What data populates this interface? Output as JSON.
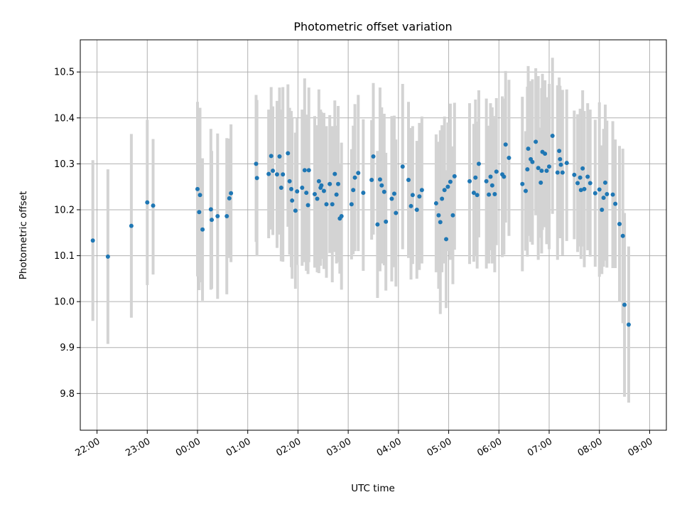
{
  "chart_data": {
    "type": "scatter",
    "title": "Photometric offset variation",
    "xlabel": "UTC time",
    "ylabel": "Photometric offset",
    "grid": true,
    "x_is_time": true,
    "x_ticks": [
      "22:00",
      "23:00",
      "00:00",
      "01:00",
      "02:00",
      "03:00",
      "04:00",
      "05:00",
      "06:00",
      "07:00",
      "08:00",
      "09:00"
    ],
    "y_ticks": [
      "9.8",
      "9.9",
      "10.0",
      "10.1",
      "10.2",
      "10.3",
      "10.4",
      "10.5"
    ],
    "xlim": [
      "21:40",
      "09:20"
    ],
    "ylim": [
      9.72,
      10.57
    ],
    "colors": {
      "points": "#1f77b4",
      "errorbars": "#d3d3d3",
      "grid": "#b0b0b0"
    },
    "series": [
      {
        "x": [
          "21:55",
          "22:13",
          "22:41",
          "23:00",
          "23:07",
          "00:00",
          "00:02",
          "00:03",
          "00:06",
          "00:16",
          "00:17",
          "00:24",
          "00:35",
          "00:38",
          "00:40",
          "01:10",
          "01:11",
          "01:25",
          "01:28",
          "01:30",
          "01:35",
          "01:38",
          "01:40",
          "01:42",
          "01:48",
          "01:50",
          "01:52",
          "01:53",
          "01:57",
          "01:59",
          "02:05",
          "02:08",
          "02:10",
          "02:12",
          "02:13",
          "02:20",
          "02:23",
          "02:25",
          "02:27",
          "02:28",
          "02:31",
          "02:34",
          "02:38",
          "02:41",
          "02:44",
          "02:46",
          "02:48",
          "02:50",
          "02:52",
          "03:04",
          "03:06",
          "03:08",
          "03:12",
          "03:18",
          "03:28",
          "03:30",
          "03:35",
          "03:38",
          "03:40",
          "03:43",
          "03:45",
          "03:52",
          "03:55",
          "03:57",
          "04:05",
          "04:12",
          "04:15",
          "04:17",
          "04:22",
          "04:25",
          "04:28",
          "04:45",
          "04:48",
          "04:50",
          "04:52",
          "04:55",
          "04:57",
          "04:59",
          "05:02",
          "05:05",
          "05:07",
          "05:25",
          "05:30",
          "05:32",
          "05:34",
          "05:36",
          "05:45",
          "05:48",
          "05:50",
          "05:52",
          "05:55",
          "05:57",
          "06:04",
          "06:06",
          "06:08",
          "06:12",
          "06:28",
          "06:32",
          "06:34",
          "06:35",
          "06:38",
          "06:40",
          "06:44",
          "06:47",
          "06:50",
          "06:51",
          "06:52",
          "06:55",
          "06:57",
          "07:00",
          "07:04",
          "07:10",
          "07:12",
          "07:13",
          "07:14",
          "07:16",
          "07:21",
          "07:30",
          "07:34",
          "07:37",
          "07:38",
          "07:40",
          "07:42",
          "07:46",
          "07:49",
          "07:55",
          "08:00",
          "08:03",
          "08:05",
          "08:07",
          "08:09",
          "08:16",
          "08:19",
          "08:24",
          "08:28",
          "08:30",
          "08:35"
        ],
        "y": [
          10.133,
          10.098,
          10.165,
          10.216,
          10.209,
          10.245,
          10.195,
          10.232,
          10.157,
          10.201,
          10.178,
          10.186,
          10.186,
          10.225,
          10.236,
          10.3,
          10.269,
          10.278,
          10.317,
          10.285,
          10.277,
          10.316,
          10.248,
          10.277,
          10.323,
          10.262,
          10.245,
          10.22,
          10.198,
          10.24,
          10.248,
          10.286,
          10.237,
          10.21,
          10.286,
          10.234,
          10.224,
          10.262,
          10.248,
          10.253,
          10.241,
          10.212,
          10.256,
          10.212,
          10.278,
          10.233,
          10.256,
          10.181,
          10.186,
          10.212,
          10.243,
          10.27,
          10.28,
          10.237,
          10.265,
          10.316,
          10.168,
          10.266,
          10.253,
          10.239,
          10.174,
          10.224,
          10.235,
          10.193,
          10.294,
          10.265,
          10.208,
          10.232,
          10.2,
          10.229,
          10.243,
          10.214,
          10.188,
          10.173,
          10.224,
          10.243,
          10.136,
          10.25,
          10.261,
          10.188,
          10.273,
          10.262,
          10.237,
          10.27,
          10.232,
          10.3,
          10.262,
          10.233,
          10.272,
          10.253,
          10.234,
          10.283,
          10.277,
          10.272,
          10.342,
          10.313,
          10.256,
          10.241,
          10.288,
          10.333,
          10.31,
          10.304,
          10.348,
          10.291,
          10.259,
          10.285,
          10.326,
          10.322,
          10.285,
          10.294,
          10.361,
          10.281,
          10.328,
          10.31,
          10.298,
          10.281,
          10.302,
          10.276,
          10.258,
          10.27,
          10.243,
          10.29,
          10.245,
          10.272,
          10.258,
          10.236,
          10.244,
          10.2,
          10.226,
          10.259,
          10.234,
          10.233,
          10.213,
          10.169,
          10.143,
          9.993,
          9.95
        ],
        "yerr_low": [
          0.175,
          0.19,
          0.2,
          0.18,
          0.15,
          0.19,
          0.17,
          0.19,
          0.155,
          0.175,
          0.15,
          0.18,
          0.17,
          0.13,
          0.15,
          0.17,
          0.17,
          0.14,
          0.16,
          0.14,
          0.16,
          0.17,
          0.16,
          0.19,
          0.16,
          0.16,
          0.17,
          0.17,
          0.17,
          0.16,
          0.17,
          0.2,
          0.17,
          0.15,
          0.2,
          0.16,
          0.16,
          0.2,
          0.17,
          0.16,
          0.17,
          0.16,
          0.15,
          0.17,
          0.17,
          0.15,
          0.17,
          0.12,
          0.16,
          0.12,
          0.14,
          0.16,
          0.17,
          0.17,
          0.13,
          0.17,
          0.16,
          0.2,
          0.17,
          0.16,
          0.15,
          0.18,
          0.16,
          0.16,
          0.18,
          0.17,
          0.16,
          0.15,
          0.15,
          0.16,
          0.16,
          0.15,
          0.16,
          0.2,
          0.16,
          0.16,
          0.15,
          0.14,
          0.17,
          0.15,
          0.16,
          0.18,
          0.15,
          0.17,
          0.16,
          0.16,
          0.19,
          0.15,
          0.16,
          0.17,
          0.17,
          0.16,
          0.18,
          0.17,
          0.17,
          0.17,
          0.19,
          0.13,
          0.19,
          0.19,
          0.18,
          0.18,
          0.16,
          0.2,
          0.12,
          0.18,
          0.17,
          0.16,
          0.16,
          0.18,
          0.17,
          0.19,
          0.19,
          0.16,
          0.16,
          0.18,
          0.17,
          0.14,
          0.15,
          0.15,
          0.15,
          0.17,
          0.17,
          0.16,
          0.16,
          0.16,
          0.19,
          0.14,
          0.15,
          0.17,
          0.16,
          0.16,
          0.14,
          0.17,
          0.19,
          0.2,
          0.17
        ],
        "yerr_high": [
          0.175,
          0.19,
          0.2,
          0.18,
          0.145,
          0.19,
          0.17,
          0.19,
          0.155,
          0.175,
          0.15,
          0.18,
          0.17,
          0.13,
          0.15,
          0.15,
          0.17,
          0.14,
          0.15,
          0.14,
          0.16,
          0.15,
          0.17,
          0.19,
          0.15,
          0.16,
          0.17,
          0.18,
          0.17,
          0.16,
          0.17,
          0.2,
          0.17,
          0.15,
          0.18,
          0.17,
          0.16,
          0.2,
          0.17,
          0.16,
          0.17,
          0.17,
          0.15,
          0.17,
          0.16,
          0.15,
          0.17,
          0.12,
          0.16,
          0.12,
          0.14,
          0.16,
          0.17,
          0.16,
          0.13,
          0.16,
          0.16,
          0.2,
          0.17,
          0.17,
          0.15,
          0.18,
          0.17,
          0.16,
          0.18,
          0.17,
          0.17,
          0.15,
          0.15,
          0.16,
          0.16,
          0.15,
          0.16,
          0.2,
          0.16,
          0.16,
          0.15,
          0.14,
          0.17,
          0.15,
          0.16,
          0.17,
          0.15,
          0.17,
          0.16,
          0.16,
          0.18,
          0.15,
          0.16,
          0.17,
          0.17,
          0.16,
          0.17,
          0.17,
          0.16,
          0.17,
          0.19,
          0.13,
          0.18,
          0.18,
          0.17,
          0.18,
          0.16,
          0.2,
          0.12,
          0.18,
          0.17,
          0.16,
          0.16,
          0.18,
          0.17,
          0.19,
          0.16,
          0.16,
          0.16,
          0.18,
          0.16,
          0.14,
          0.15,
          0.15,
          0.15,
          0.17,
          0.17,
          0.16,
          0.16,
          0.16,
          0.19,
          0.14,
          0.15,
          0.17,
          0.16,
          0.16,
          0.14,
          0.17,
          0.19,
          0.2,
          0.17
        ]
      }
    ]
  }
}
